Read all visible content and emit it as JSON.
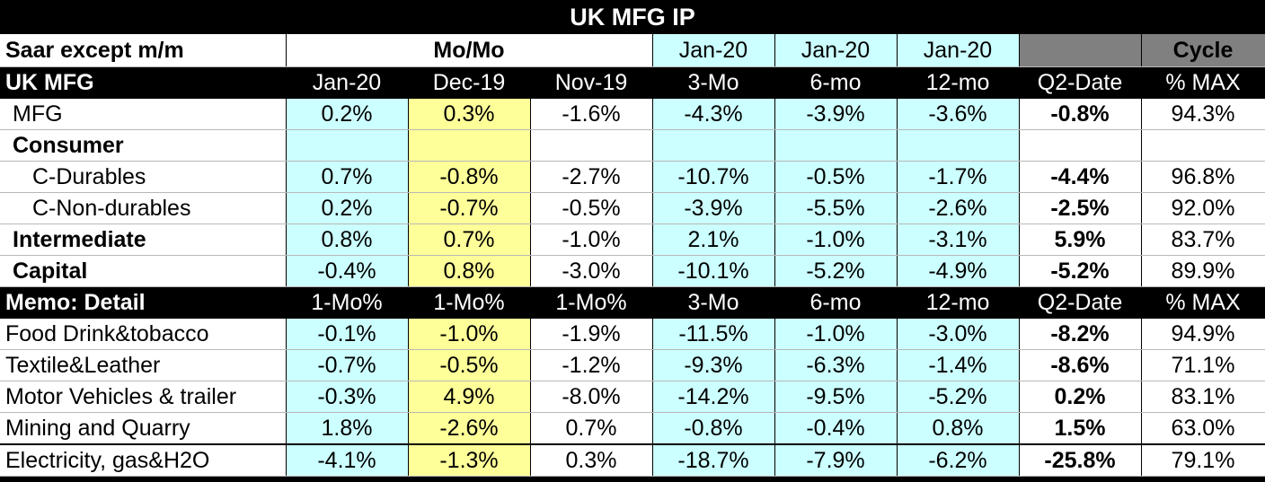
{
  "title": "UK MFG IP",
  "header1": {
    "label": "Saar except m/m",
    "momo": "Mo/Mo",
    "c1": "Jan-20",
    "c2": "Jan-20",
    "c3": "Jan-20",
    "q2": "",
    "cycle": "Cycle"
  },
  "header2": {
    "label": "UK MFG",
    "cols": [
      "Jan-20",
      "Dec-19",
      "Nov-19",
      "3-Mo",
      "6-mo",
      "12-mo",
      "Q2-Date",
      "% MAX"
    ]
  },
  "rows1": [
    {
      "label": "MFG",
      "vals": [
        "0.2%",
        "0.3%",
        "-1.6%",
        "-4.3%",
        "-3.9%",
        "-3.6%",
        "-0.8%",
        "94.3%"
      ]
    },
    {
      "label": "Consumer",
      "vals": [
        "",
        "",
        "",
        "",
        "",
        "",
        "",
        ""
      ]
    },
    {
      "label": "C-Durables",
      "vals": [
        "0.7%",
        "-0.8%",
        "-2.7%",
        "-10.7%",
        "-0.5%",
        "-1.7%",
        "-4.4%",
        "96.8%"
      ]
    },
    {
      "label": "C-Non-durables",
      "vals": [
        "0.2%",
        "-0.7%",
        "-0.5%",
        "-3.9%",
        "-5.5%",
        "-2.6%",
        "-2.5%",
        "92.0%"
      ]
    },
    {
      "label": "Intermediate",
      "vals": [
        "0.8%",
        "0.7%",
        "-1.0%",
        "2.1%",
        "-1.0%",
        "-3.1%",
        "5.9%",
        "83.7%"
      ]
    },
    {
      "label": "Capital",
      "vals": [
        "-0.4%",
        "0.8%",
        "-3.0%",
        "-10.1%",
        "-5.2%",
        "-4.9%",
        "-5.2%",
        "89.9%"
      ]
    }
  ],
  "header3": {
    "label": "Memo: Detail",
    "cols": [
      "1-Mo%",
      "1-Mo%",
      "1-Mo%",
      "3-Mo",
      "6-mo",
      "12-mo",
      "Q2-Date",
      "% MAX"
    ]
  },
  "rows2": [
    {
      "label": "Food Drink&tobacco",
      "vals": [
        "-0.1%",
        "-1.0%",
        "-1.9%",
        "-11.5%",
        "-1.0%",
        "-3.0%",
        "-8.2%",
        "94.9%"
      ]
    },
    {
      "label": "Textile&Leather",
      "vals": [
        "-0.7%",
        "-0.5%",
        "-1.2%",
        "-9.3%",
        "-6.3%",
        "-1.4%",
        "-8.6%",
        "71.1%"
      ]
    },
    {
      "label": "Motor Vehicles & trailer",
      "vals": [
        "-0.3%",
        "4.9%",
        "-8.0%",
        "-14.2%",
        "-9.5%",
        "-5.2%",
        "0.2%",
        "83.1%"
      ]
    },
    {
      "label": "Mining and Quarry",
      "vals": [
        "1.8%",
        "-2.6%",
        "0.7%",
        "-0.8%",
        "-0.4%",
        "0.8%",
        "1.5%",
        "63.0%"
      ]
    },
    {
      "label": "Electricity, gas&H2O",
      "vals": [
        "-4.1%",
        "-1.3%",
        "0.3%",
        "-18.7%",
        "-7.9%",
        "-6.2%",
        "-25.8%",
        "79.1%"
      ]
    }
  ],
  "colors": {
    "cyan": "#ccffff",
    "yellow": "#ffff99",
    "gray": "#808080",
    "black": "#000000"
  }
}
